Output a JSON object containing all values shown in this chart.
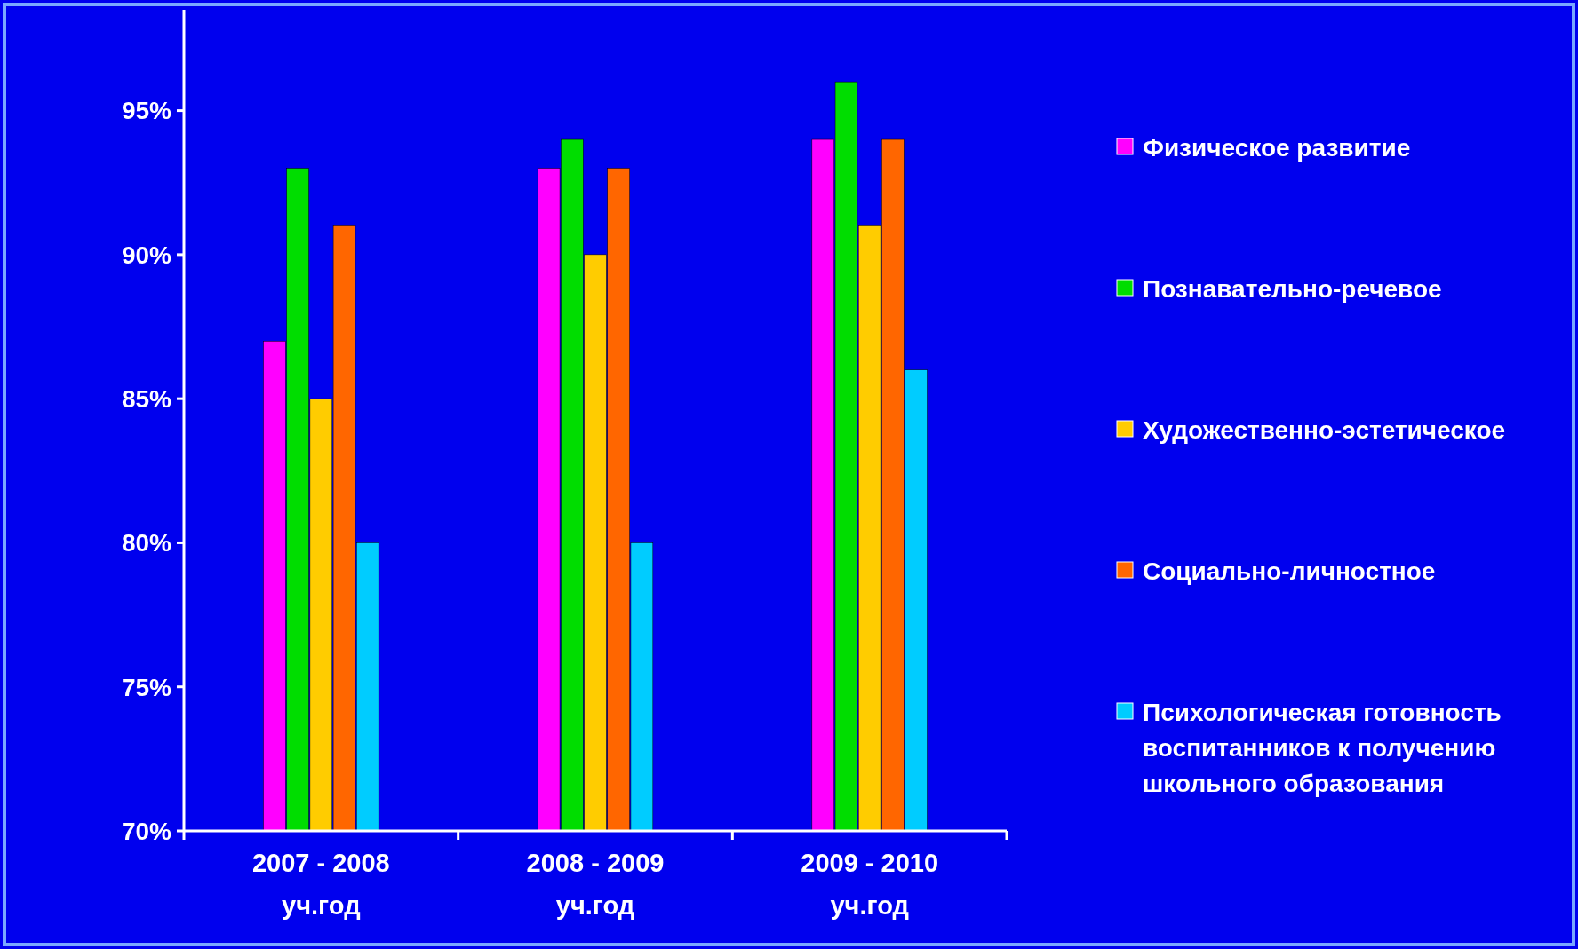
{
  "chart_data": {
    "type": "bar",
    "categories": [
      "2007 - 2008 уч.год",
      "2008 - 2009 уч.год",
      "2009 - 2010 уч.год"
    ],
    "series": [
      {
        "name": "Физическое развитие",
        "color": "#ff00ff",
        "values": [
          87,
          93,
          94
        ]
      },
      {
        "name": "Познавательно-речевое",
        "color": "#00dd00",
        "values": [
          93,
          94,
          96
        ]
      },
      {
        "name": "Художественно-эстетическое",
        "color": "#ffcc00",
        "values": [
          85,
          90,
          91
        ]
      },
      {
        "name": "Социально-личностное",
        "color": "#ff6600",
        "values": [
          91,
          93,
          94
        ]
      },
      {
        "name": "Психологическая готовность воспитанников к получению школьного образования",
        "color": "#00ccff",
        "values": [
          80,
          80,
          86
        ]
      }
    ],
    "ylim": [
      70,
      98.5
    ],
    "yticks": [
      {
        "value": 70,
        "label": "70%"
      },
      {
        "value": 75,
        "label": "75%"
      },
      {
        "value": 80,
        "label": "80%"
      },
      {
        "value": 85,
        "label": "85%"
      },
      {
        "value": 90,
        "label": "90%"
      },
      {
        "value": 95,
        "label": "95%"
      }
    ],
    "grid": false,
    "legend": "right"
  }
}
